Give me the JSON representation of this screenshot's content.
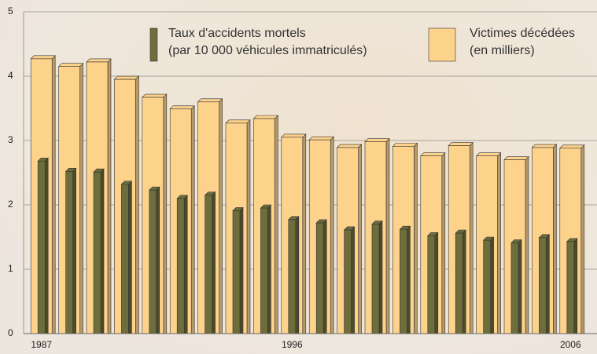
{
  "chart_data": {
    "type": "bar",
    "categories": [
      "1987",
      null,
      null,
      null,
      null,
      null,
      null,
      null,
      null,
      "1996",
      null,
      null,
      null,
      null,
      null,
      null,
      null,
      null,
      null,
      "2006"
    ],
    "series": [
      {
        "name": "Victimes décédées\n(en milliers)",
        "color": "#fdd38c",
        "values": [
          4.27,
          4.15,
          4.22,
          3.95,
          3.67,
          3.49,
          3.6,
          3.27,
          3.34,
          3.05,
          3.01,
          2.89,
          2.98,
          2.91,
          2.76,
          2.92,
          2.76,
          2.7,
          2.89,
          2.88
        ]
      },
      {
        "name": "Taux d'accidents mortels\n(par 10 000 véhicules immatriculés)",
        "color": "#6e6d3c",
        "values": [
          2.68,
          2.52,
          2.51,
          2.32,
          2.23,
          2.1,
          2.15,
          1.91,
          1.95,
          1.77,
          1.72,
          1.61,
          1.7,
          1.62,
          1.52,
          1.56,
          1.45,
          1.41,
          1.49,
          1.43
        ]
      }
    ],
    "ylim": [
      0,
      5
    ],
    "yticks": [
      0,
      1,
      2,
      3,
      4,
      5
    ],
    "grid": true
  }
}
